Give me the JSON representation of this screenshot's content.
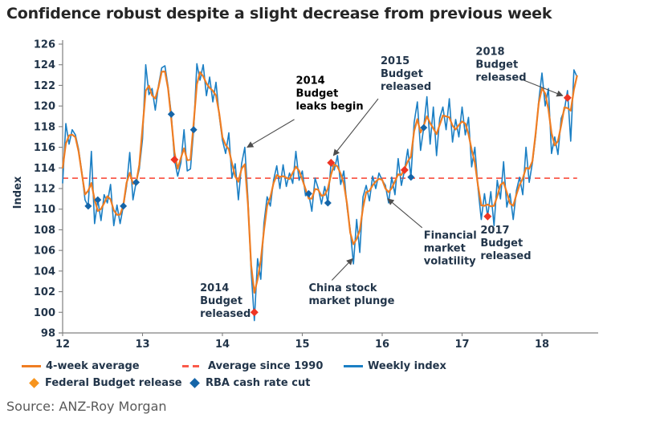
{
  "title": "Confidence robust despite a slight decrease from previous week",
  "source": "Source: ANZ-Roy Morgan",
  "colors": {
    "weekly": "#1b7fc4",
    "avg4": "#ef7d22",
    "avg1990": "#fa5a4b",
    "budget_marker": "#ee3524",
    "budget_legend": "#f7941d",
    "rba_marker": "#1565a8",
    "axis": "#808080",
    "text_dark": "#22354a",
    "title": "#262626",
    "source": "#595959",
    "arrow": "#4d4d4d"
  },
  "legend": {
    "row1": [
      {
        "label": "4-week average",
        "swatch": "line-orange"
      },
      {
        "label": "Average since 1990",
        "swatch": "dash-red"
      },
      {
        "label": "Weekly index",
        "swatch": "line-blue"
      }
    ],
    "row2": [
      {
        "label": "Federal Budget release",
        "swatch": "diamond-orange"
      },
      {
        "label": "RBA cash rate cut",
        "swatch": "diamond-blue"
      }
    ]
  },
  "chart_data": {
    "type": "line",
    "title": "Confidence robust despite a slight decrease from previous week",
    "xlabel": "",
    "ylabel": "Index",
    "ylim": [
      98,
      126
    ],
    "ytick_step": 2,
    "xticks": [
      12,
      13,
      14,
      15,
      16,
      17,
      18
    ],
    "grid": false,
    "legend_position": "bottom",
    "average_since_1990": 113,
    "x_start": 12.0,
    "x_step": 0.04,
    "x_end": 18.44,
    "weekly_index": [
      112.5,
      118.3,
      116.3,
      117.7,
      117.2,
      115.8,
      113.6,
      110.9,
      110.3,
      115.6,
      108.6,
      110.9,
      108.9,
      111.4,
      110.6,
      112.4,
      108.4,
      110.4,
      108.6,
      110.3,
      112.2,
      115.5,
      110.9,
      112.6,
      113.9,
      116.8,
      124.0,
      121.1,
      121.7,
      119.6,
      122.0,
      123.7,
      123.9,
      121.9,
      119.2,
      114.8,
      113.2,
      114.5,
      117.7,
      113.7,
      113.9,
      117.7,
      124.1,
      122.5,
      124.0,
      121.0,
      122.8,
      120.4,
      122.3,
      119.1,
      116.7,
      115.4,
      117.4,
      113.0,
      114.4,
      110.9,
      114.4,
      116.0,
      111.0,
      104.0,
      99.2,
      105.2,
      103.2,
      108.6,
      111.2,
      110.3,
      112.8,
      114.2,
      112.0,
      114.3,
      112.2,
      113.5,
      112.5,
      115.6,
      112.8,
      113.7,
      111.3,
      111.5,
      109.8,
      113.0,
      112.0,
      110.5,
      112.2,
      110.6,
      114.5,
      113.8,
      115.2,
      112.4,
      113.7,
      110.2,
      108.0,
      104.7,
      109.0,
      105.8,
      111.2,
      112.3,
      110.8,
      113.2,
      112.0,
      113.5,
      112.8,
      112.3,
      110.6,
      113.1,
      111.4,
      114.9,
      112.3,
      113.8,
      115.8,
      113.1,
      118.4,
      120.4,
      115.7,
      117.9,
      120.9,
      116.3,
      119.9,
      115.2,
      118.8,
      119.9,
      117.7,
      120.7,
      116.5,
      118.7,
      117.0,
      119.9,
      117.2,
      118.9,
      114.1,
      116.0,
      112.0,
      109.0,
      111.5,
      109.3,
      111.7,
      108.4,
      112.8,
      111.0,
      114.6,
      110.2,
      111.5,
      109.0,
      111.8,
      113.1,
      111.4,
      116.0,
      112.6,
      114.5,
      117.0,
      120.5,
      123.2,
      120.0,
      121.7,
      115.4,
      117.0,
      115.3,
      118.8,
      119.6,
      121.5,
      116.6,
      123.5,
      122.8
    ],
    "four_week_average": "derived: 4-week moving average of weekly_index (computed by renderer)",
    "budget_markers": [
      {
        "t": 13.4,
        "v": 114.8
      },
      {
        "t": 14.4,
        "v": 100.0
      },
      {
        "t": 15.36,
        "v": 114.5
      },
      {
        "t": 16.28,
        "v": 113.8
      },
      {
        "t": 17.32,
        "v": 109.3
      },
      {
        "t": 18.32,
        "v": 120.8
      }
    ],
    "rba_markers": [
      {
        "t": 12.32,
        "v": 110.3
      },
      {
        "t": 12.44,
        "v": 110.9
      },
      {
        "t": 12.76,
        "v": 110.3
      },
      {
        "t": 12.92,
        "v": 112.6
      },
      {
        "t": 13.36,
        "v": 119.2
      },
      {
        "t": 13.64,
        "v": 117.7
      },
      {
        "t": 15.08,
        "v": 111.5
      },
      {
        "t": 15.32,
        "v": 110.6
      },
      {
        "t": 16.36,
        "v": 113.1
      },
      {
        "t": 16.52,
        "v": 117.9
      }
    ],
    "annotations": [
      {
        "lines": [
          "2014",
          "Budget",
          "leaks begin"
        ],
        "bold": true,
        "t": 14.92,
        "v": 123.0,
        "arrow": {
          "t1": 14.9,
          "v1": 118.7,
          "t2": 14.31,
          "v2": 116.0
        }
      },
      {
        "lines": [
          "2015",
          "Budget",
          "released"
        ],
        "bold": false,
        "t": 15.98,
        "v": 124.9,
        "arrow": {
          "t1": 15.95,
          "v1": 120.7,
          "t2": 15.39,
          "v2": 115.2
        }
      },
      {
        "lines": [
          "2018",
          "Budget",
          "released"
        ],
        "bold": false,
        "t": 17.17,
        "v": 125.8,
        "arrow": {
          "t1": 17.74,
          "v1": 122.6,
          "t2": 18.26,
          "v2": 121.0
        }
      },
      {
        "lines": [
          "2014",
          "Budget",
          "released"
        ],
        "bold": false,
        "t": 13.72,
        "v": 102.9
      },
      {
        "lines": [
          "China stock",
          "market plunge"
        ],
        "bold": false,
        "t": 15.08,
        "v": 102.9,
        "arrow": {
          "t1": 15.37,
          "v1": 103.1,
          "t2": 15.63,
          "v2": 105.2
        }
      },
      {
        "lines": [
          "Financial",
          "market",
          "volatility"
        ],
        "bold": false,
        "t": 16.52,
        "v": 108.0,
        "arrow": {
          "t1": 16.5,
          "v1": 108.2,
          "t2": 16.07,
          "v2": 111.0
        }
      },
      {
        "lines": [
          "2017",
          "Budget",
          "released"
        ],
        "bold": false,
        "t": 17.23,
        "v": 108.5
      }
    ]
  }
}
